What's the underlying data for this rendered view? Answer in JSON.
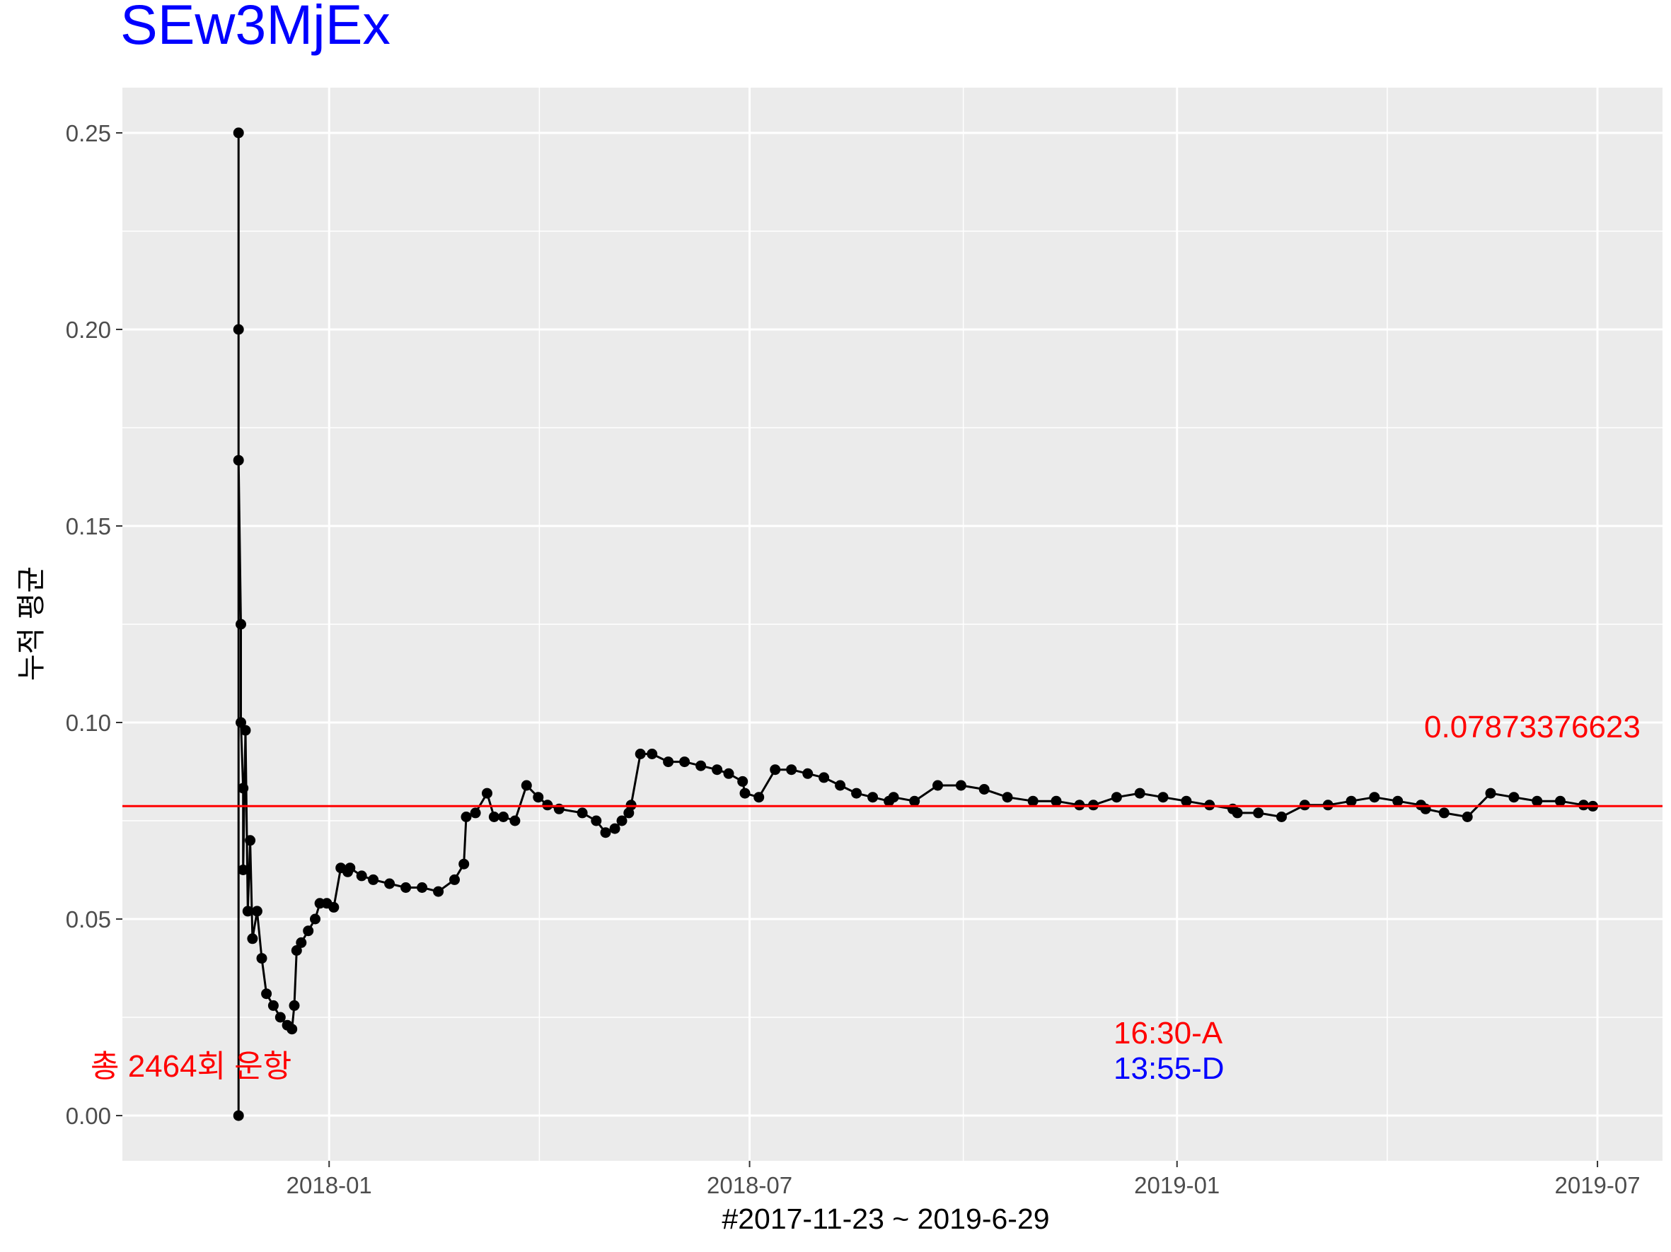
{
  "chart_data": {
    "type": "line",
    "title": "SEw3MjEx",
    "title_color": "#0000ff",
    "xlabel": "#2017-11-23 ~ 2019-6-29",
    "ylabel": "누적 평균",
    "ylim": [
      -0.0115,
      0.2615
    ],
    "xlim": [
      "2017-10-04",
      "2019-07-29"
    ],
    "y_ticks": [
      0.0,
      0.05,
      0.1,
      0.15,
      0.2,
      0.25
    ],
    "y_tick_labels": [
      "0.00",
      "0.05",
      "0.10",
      "0.15",
      "0.20",
      "0.25"
    ],
    "x_ticks": [
      "2018-01-01",
      "2018-07-01",
      "2019-01-01",
      "2019-07-01"
    ],
    "x_tick_labels": [
      "2018-01",
      "2018-07",
      "2019-01",
      "2019-07"
    ],
    "grid": true,
    "panel_color": "#ebebeb",
    "series": [
      {
        "color": "#000000",
        "x": [
          "2017-11-23",
          "2017-11-23",
          "2017-11-23",
          "2017-11-23",
          "2017-11-24",
          "2017-11-24",
          "2017-11-25",
          "2017-11-25",
          "2017-11-26",
          "2017-11-27",
          "2017-11-28",
          "2017-11-29",
          "2017-12-01",
          "2017-12-03",
          "2017-12-05",
          "2017-12-08",
          "2017-12-11",
          "2017-12-14",
          "2017-12-16",
          "2017-12-17",
          "2017-12-18",
          "2017-12-20",
          "2017-12-23",
          "2017-12-26",
          "2017-12-28",
          "2017-12-31",
          "2018-01-03",
          "2018-01-06",
          "2018-01-09",
          "2018-01-10",
          "2018-01-15",
          "2018-01-20",
          "2018-01-27",
          "2018-02-03",
          "2018-02-10",
          "2018-02-17",
          "2018-02-24",
          "2018-02-28",
          "2018-03-01",
          "2018-03-05",
          "2018-03-10",
          "2018-03-13",
          "2018-03-17",
          "2018-03-22",
          "2018-03-27",
          "2018-04-01",
          "2018-04-05",
          "2018-04-10",
          "2018-04-20",
          "2018-04-26",
          "2018-04-30",
          "2018-05-04",
          "2018-05-07",
          "2018-05-10",
          "2018-05-11",
          "2018-05-15",
          "2018-05-20",
          "2018-05-27",
          "2018-06-03",
          "2018-06-10",
          "2018-06-17",
          "2018-06-22",
          "2018-06-28",
          "2018-06-29",
          "2018-07-05",
          "2018-07-12",
          "2018-07-19",
          "2018-07-26",
          "2018-08-02",
          "2018-08-09",
          "2018-08-16",
          "2018-08-23",
          "2018-08-30",
          "2018-09-01",
          "2018-09-10",
          "2018-09-20",
          "2018-09-30",
          "2018-10-10",
          "2018-10-20",
          "2018-10-31",
          "2018-11-10",
          "2018-11-20",
          "2018-11-26",
          "2018-12-06",
          "2018-12-16",
          "2018-12-26",
          "2019-01-05",
          "2019-01-15",
          "2019-01-25",
          "2019-01-27",
          "2019-02-05",
          "2019-02-15",
          "2019-02-25",
          "2019-03-07",
          "2019-03-17",
          "2019-03-27",
          "2019-04-06",
          "2019-04-16",
          "2019-04-18",
          "2019-04-26",
          "2019-05-06",
          "2019-05-16",
          "2019-05-26",
          "2019-06-05",
          "2019-06-15",
          "2019-06-25",
          "2019-06-29"
        ],
        "values": [
          0.0,
          0.25,
          0.2,
          0.1667,
          0.125,
          0.1,
          0.0833,
          0.0625,
          0.098,
          0.052,
          0.07,
          0.045,
          0.052,
          0.04,
          0.031,
          0.028,
          0.025,
          0.023,
          0.022,
          0.028,
          0.042,
          0.044,
          0.047,
          0.05,
          0.054,
          0.054,
          0.053,
          0.063,
          0.062,
          0.063,
          0.061,
          0.06,
          0.059,
          0.058,
          0.058,
          0.057,
          0.06,
          0.064,
          0.076,
          0.077,
          0.082,
          0.076,
          0.076,
          0.075,
          0.084,
          0.081,
          0.079,
          0.078,
          0.077,
          0.075,
          0.072,
          0.073,
          0.075,
          0.077,
          0.079,
          0.092,
          0.092,
          0.09,
          0.09,
          0.089,
          0.088,
          0.087,
          0.085,
          0.082,
          0.081,
          0.088,
          0.088,
          0.087,
          0.086,
          0.084,
          0.082,
          0.081,
          0.08,
          0.081,
          0.08,
          0.084,
          0.084,
          0.083,
          0.081,
          0.08,
          0.08,
          0.079,
          0.079,
          0.081,
          0.082,
          0.081,
          0.08,
          0.079,
          0.078,
          0.077,
          0.077,
          0.076,
          0.079,
          0.079,
          0.08,
          0.081,
          0.08,
          0.079,
          0.078,
          0.077,
          0.076,
          0.082,
          0.081,
          0.08,
          0.08,
          0.079,
          0.0787
        ]
      }
    ],
    "hline": {
      "value": 0.07873376623,
      "color": "#ff0000"
    },
    "annotations": {
      "mean_label": "0.07873376623",
      "mean_color": "#ff0000",
      "count_label": "총 2464회 운항",
      "count_color": "#ff0000",
      "time_a": "16:30-A",
      "time_a_color": "#ff0000",
      "time_d": "13:55-D",
      "time_d_color": "#0000ff"
    }
  }
}
